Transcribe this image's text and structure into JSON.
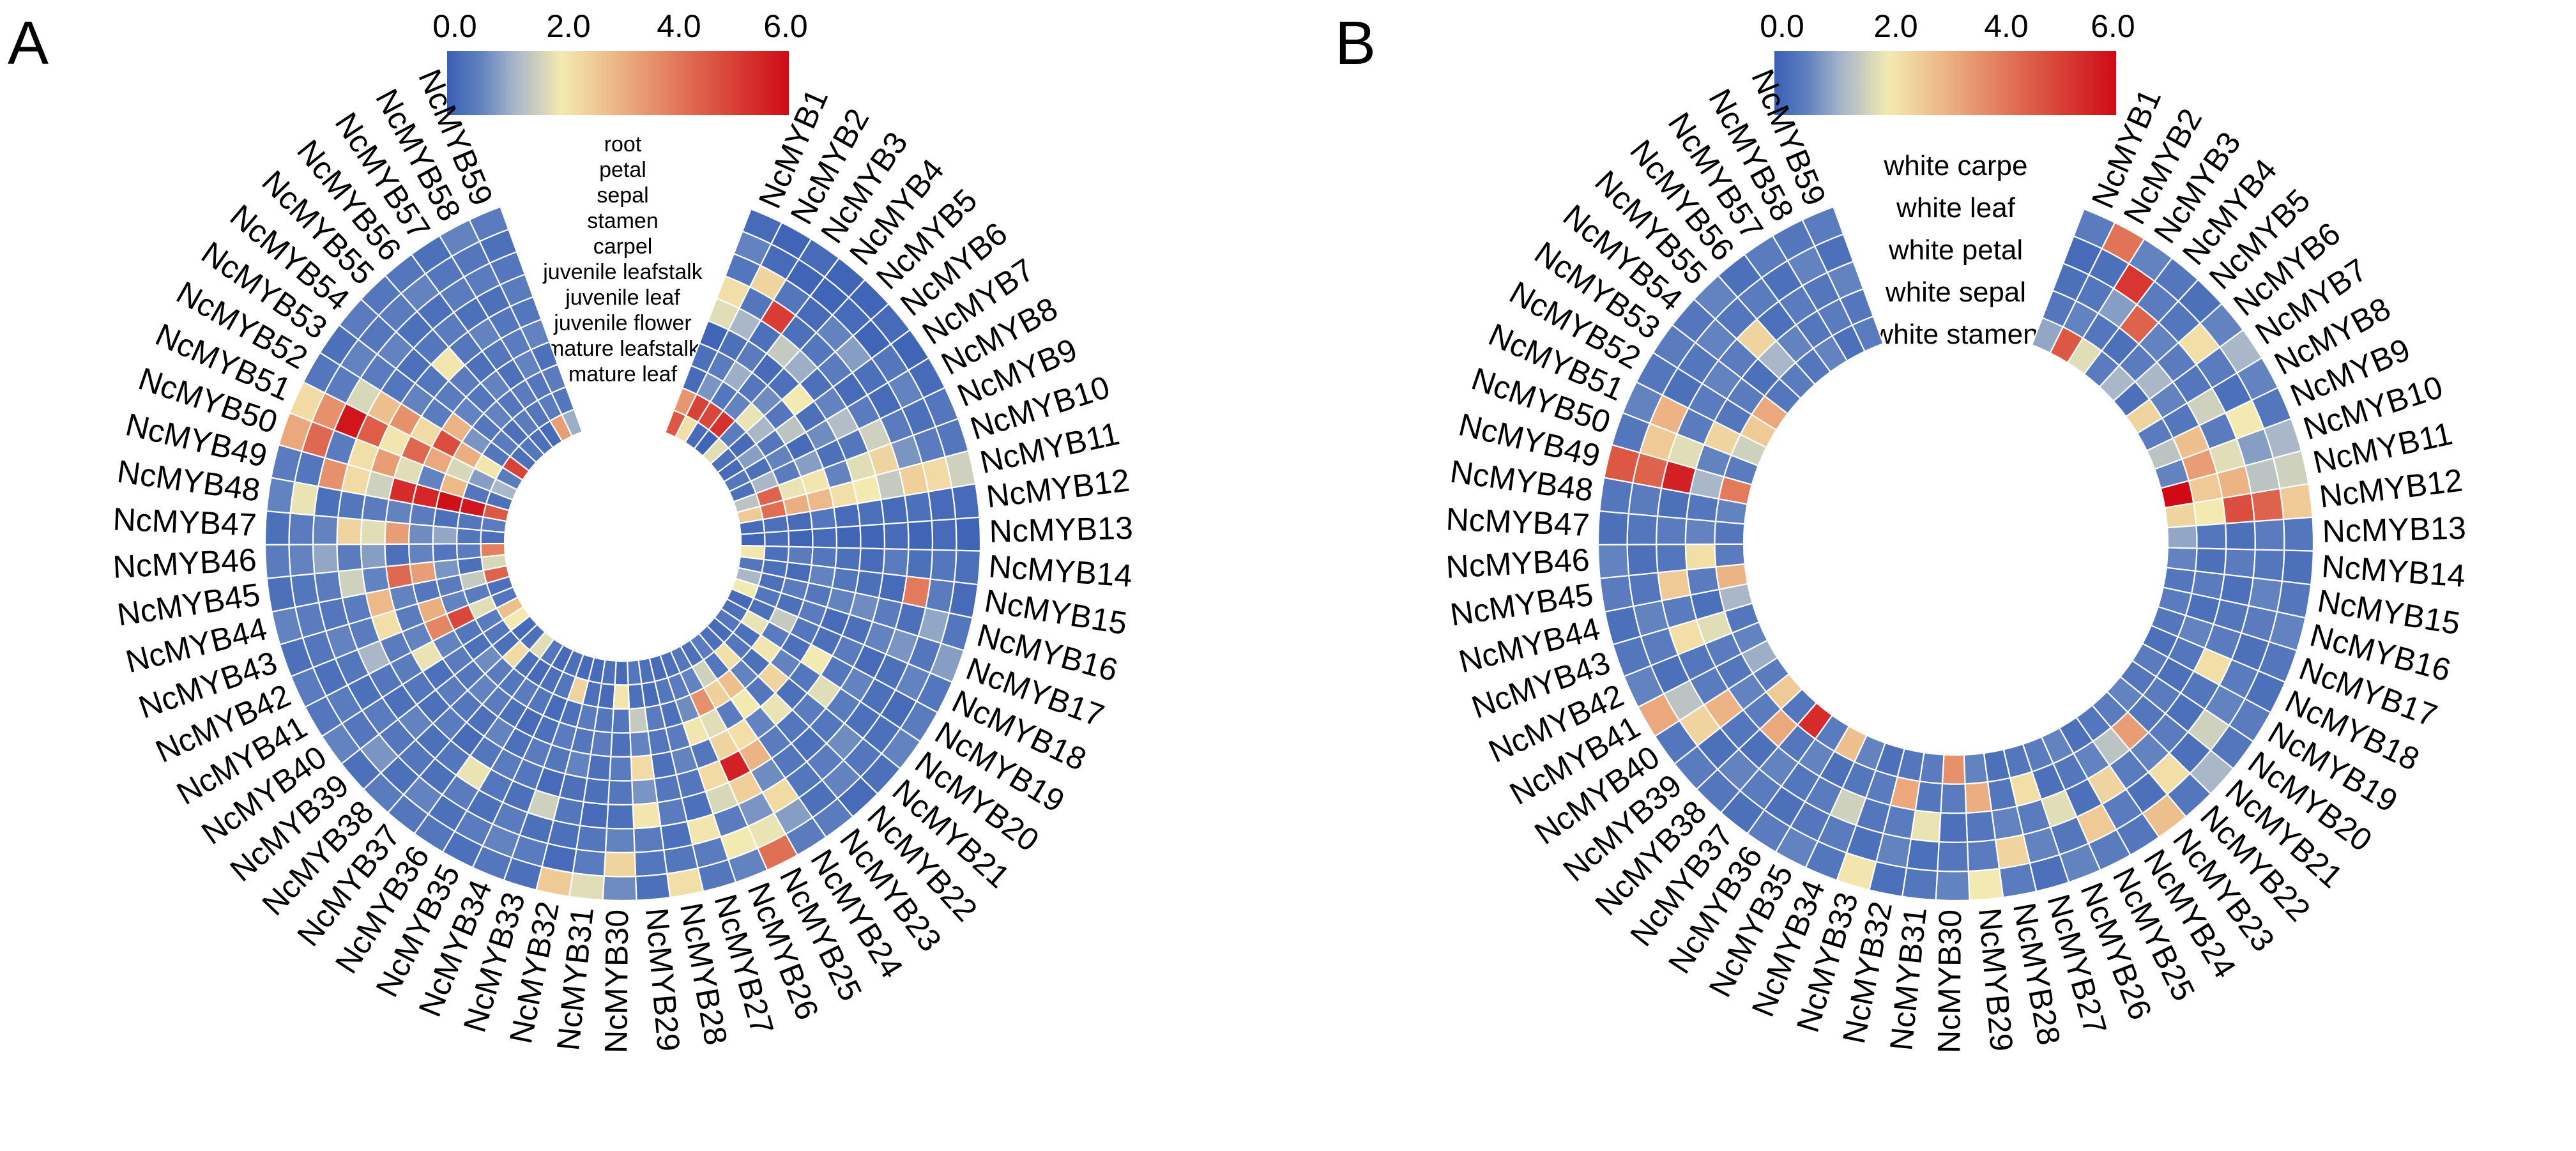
{
  "colorscale": {
    "min": 0,
    "max": 6,
    "stops": [
      {
        "v": 0.0,
        "c": "#3a5fb4"
      },
      {
        "v": 0.55,
        "c": "#5d7fbf"
      },
      {
        "v": 1.2,
        "c": "#a9b7c9"
      },
      {
        "v": 2.0,
        "c": "#f3eab1"
      },
      {
        "v": 3.0,
        "c": "#ecb484"
      },
      {
        "v": 4.2,
        "c": "#e06e53"
      },
      {
        "v": 6.0,
        "c": "#cf0a16"
      }
    ]
  },
  "chart_data": [
    {
      "type": "heatmap",
      "panel": "A",
      "tick_labels": [
        "0.0",
        "2.0",
        "4.0",
        "6.0"
      ],
      "ticks": [
        0,
        2,
        4,
        6
      ],
      "tissues": [
        "root",
        "petal",
        "sepal",
        "stamen",
        "carpel",
        "juvenile leafstalk",
        "juvenile leaf",
        "juvenile flower",
        "mature leafstalk",
        "mature leaf"
      ],
      "genes": [
        "NcMYB1",
        "NcMYB2",
        "NcMYB3",
        "NcMYB4",
        "NcMYB5",
        "NcMYB6",
        "NcMYB7",
        "NcMYB8",
        "NcMYB9",
        "NcMYB10",
        "NcMYB11",
        "NcMYB12",
        "NcMYB13",
        "NcMYB14",
        "NcMYB15",
        "NcMYB16",
        "NcMYB17",
        "NcMYB18",
        "NcMYB19",
        "NcMYB20",
        "NcMYB21",
        "NcMYB22",
        "NcMYB23",
        "NcMYB24",
        "NcMYB25",
        "NcMYB26",
        "NcMYB27",
        "NcMYB28",
        "NcMYB29",
        "NcMYB30",
        "NcMYB31",
        "NcMYB32",
        "NcMYB33",
        "NcMYB34",
        "NcMYB35",
        "NcMYB36",
        "NcMYB37",
        "NcMYB38",
        "NcMYB39",
        "NcMYB40",
        "NcMYB41",
        "NcMYB42",
        "NcMYB43",
        "NcMYB44",
        "NcMYB45",
        "NcMYB46",
        "NcMYB47",
        "NcMYB48",
        "NcMYB49",
        "NcMYB50",
        "NcMYB51",
        "NcMYB52",
        "NcMYB53",
        "NcMYB54",
        "NcMYB55",
        "NcMYB56",
        "NcMYB57",
        "NcMYB58",
        "NcMYB59"
      ],
      "values": [
        [
          4.6,
          3.5,
          0.2,
          0.3,
          0.1,
          1.8,
          2.2,
          0.4,
          0.6,
          0.2
        ],
        [
          2.2,
          5.0,
          0.8,
          0.5,
          0.3,
          1.2,
          0.4,
          2.4,
          0.2,
          0.1
        ],
        [
          0.2,
          4.9,
          0.4,
          1.1,
          0.5,
          0.3,
          5.1,
          0.4,
          0.1,
          0.2
        ],
        [
          0.1,
          5.3,
          0.6,
          0.4,
          0.2,
          1.5,
          0.3,
          0.2,
          0.1,
          0.1
        ],
        [
          1.8,
          0.5,
          1.9,
          0.7,
          0.3,
          1.1,
          0.4,
          0.6,
          0.2,
          0.1
        ],
        [
          0.3,
          0.2,
          1.2,
          0.4,
          2.0,
          0.3,
          0.5,
          0.9,
          0.1,
          0.2
        ],
        [
          0.2,
          0.9,
          0.4,
          1.4,
          0.3,
          0.6,
          0.2,
          0.3,
          0.4,
          0.1
        ],
        [
          0.4,
          0.3,
          0.6,
          0.2,
          0.7,
          1.3,
          0.5,
          0.2,
          0.6,
          0.2
        ],
        [
          0.3,
          1.2,
          0.5,
          0.9,
          0.3,
          0.4,
          1.6,
          0.5,
          0.3,
          0.4
        ],
        [
          1.4,
          4.4,
          1.9,
          2.1,
          0.6,
          1.8,
          2.4,
          0.8,
          0.5,
          0.4
        ],
        [
          2.6,
          4.2,
          3.1,
          2.9,
          2.2,
          2.0,
          1.5,
          2.5,
          2.3,
          1.6
        ],
        [
          0.2,
          0.3,
          0.2,
          0.4,
          0.2,
          0.3,
          0.2,
          0.3,
          0.2,
          0.2
        ],
        [
          0.1,
          0.2,
          0.1,
          0.2,
          0.1,
          0.1,
          0.2,
          0.1,
          0.2,
          0.1
        ],
        [
          2.1,
          0.3,
          0.5,
          0.4,
          0.3,
          0.2,
          0.5,
          0.3,
          0.4,
          0.3
        ],
        [
          0.4,
          0.3,
          0.2,
          0.6,
          0.4,
          0.3,
          0.2,
          4.0,
          0.5,
          0.2
        ],
        [
          1.2,
          0.3,
          0.5,
          0.4,
          0.6,
          0.7,
          0.5,
          0.3,
          1.0,
          0.4
        ],
        [
          2.0,
          0.4,
          0.3,
          0.5,
          0.2,
          0.3,
          0.6,
          0.8,
          0.4,
          0.9
        ],
        [
          0.2,
          0.3,
          1.5,
          0.4,
          0.3,
          0.5,
          0.2,
          0.3,
          0.6,
          0.4
        ],
        [
          0.3,
          1.9,
          0.5,
          0.3,
          2.0,
          0.4,
          0.6,
          0.3,
          0.2,
          0.5
        ],
        [
          0.4,
          0.3,
          2.1,
          0.6,
          0.4,
          1.8,
          0.5,
          0.3,
          0.3,
          0.6
        ],
        [
          0.2,
          0.4,
          0.3,
          2.4,
          0.3,
          0.5,
          0.4,
          0.7,
          0.4,
          0.3
        ],
        [
          0.3,
          2.2,
          0.6,
          0.4,
          1.9,
          0.4,
          0.3,
          0.5,
          0.6,
          0.2
        ],
        [
          0.5,
          0.4,
          2.8,
          2.0,
          0.6,
          0.5,
          0.4,
          0.4,
          0.3,
          0.5
        ],
        [
          0.3,
          1.6,
          2.5,
          0.5,
          2.2,
          3.0,
          0.7,
          2.3,
          0.9,
          0.5
        ],
        [
          0.4,
          0.6,
          3.6,
          1.8,
          2.4,
          5.6,
          2.5,
          0.8,
          1.9,
          4.2
        ],
        [
          0.3,
          0.5,
          0.7,
          2.1,
          0.4,
          2.3,
          1.7,
          0.5,
          2.0,
          0.6
        ],
        [
          0.2,
          0.4,
          0.3,
          0.5,
          0.6,
          0.4,
          0.3,
          2.1,
          0.5,
          0.4
        ],
        [
          0.3,
          0.2,
          0.5,
          0.4,
          0.3,
          0.4,
          0.5,
          0.3,
          0.4,
          2.2
        ],
        [
          0.4,
          0.3,
          1.5,
          0.6,
          2.3,
          0.8,
          2.1,
          0.5,
          0.4,
          0.3
        ],
        [
          0.2,
          2.1,
          0.4,
          0.3,
          0.5,
          0.4,
          0.3,
          0.6,
          2.4,
          0.7
        ],
        [
          0.3,
          0.2,
          0.4,
          0.5,
          0.3,
          0.3,
          0.2,
          0.4,
          0.5,
          1.8
        ],
        [
          0.2,
          0.3,
          0.5,
          0.4,
          0.6,
          0.3,
          0.4,
          0.3,
          0.2,
          2.6
        ],
        [
          0.2,
          2.4,
          0.3,
          0.5,
          0.4,
          0.2,
          1.6,
          0.3,
          0.5,
          0.3
        ],
        [
          0.3,
          0.4,
          0.2,
          0.3,
          0.5,
          0.4,
          0.3,
          0.5,
          0.6,
          0.4
        ],
        [
          0.2,
          0.3,
          0.4,
          0.2,
          0.3,
          0.5,
          0.4,
          0.3,
          0.5,
          0.3
        ],
        [
          0.4,
          0.2,
          0.5,
          0.3,
          0.6,
          0.4,
          1.9,
          0.5,
          0.3,
          0.4
        ],
        [
          1.8,
          0.3,
          0.4,
          0.5,
          0.3,
          0.2,
          0.4,
          0.3,
          0.6,
          0.4
        ],
        [
          0.3,
          2.3,
          0.5,
          0.6,
          0.4,
          0.5,
          0.3,
          0.4,
          0.3,
          0.5
        ],
        [
          0.2,
          0.3,
          0.7,
          0.4,
          0.5,
          0.3,
          0.6,
          0.4,
          0.8,
          0.3
        ],
        [
          2.0,
          0.4,
          0.3,
          0.5,
          0.3,
          0.4,
          0.3,
          0.5,
          0.4,
          0.6
        ],
        [
          2.8,
          0.5,
          0.4,
          0.6,
          1.9,
          0.5,
          0.4,
          0.3,
          0.5,
          0.4
        ],
        [
          0.4,
          1.8,
          4.9,
          3.8,
          0.6,
          0.5,
          1.2,
          0.4,
          0.3,
          0.5
        ],
        [
          0.3,
          0.5,
          0.6,
          3.1,
          0.5,
          2.2,
          0.5,
          0.6,
          0.4,
          0.3
        ],
        [
          4.4,
          1.5,
          0.5,
          0.4,
          0.6,
          2.9,
          0.5,
          0.4,
          0.5,
          0.6
        ],
        [
          1.7,
          0.3,
          0.8,
          3.4,
          4.3,
          0.6,
          1.6,
          0.5,
          0.4,
          0.3
        ],
        [
          3.9,
          0.5,
          0.4,
          0.6,
          0.3,
          0.9,
          0.5,
          1.0,
          0.6,
          0.5
        ],
        [
          0.3,
          0.4,
          1.0,
          0.7,
          3.4,
          1.8,
          2.4,
          0.6,
          0.5,
          0.3
        ],
        [
          0.5,
          0.4,
          0.3,
          0.5,
          0.6,
          0.5,
          0.4,
          0.3,
          1.9,
          0.6
        ],
        [
          4.6,
          5.8,
          5.9,
          5.5,
          5.4,
          1.6,
          2.3,
          3.6,
          0.4,
          0.5
        ],
        [
          0.3,
          0.4,
          2.9,
          0.6,
          1.8,
          3.4,
          2.2,
          0.5,
          4.3,
          3.2
        ],
        [
          1.2,
          0.9,
          1.7,
          3.2,
          4.3,
          2.1,
          4.5,
          5.8,
          3.6,
          2.3
        ],
        [
          0.5,
          2.1,
          3.1,
          4.8,
          2.3,
          3.6,
          2.8,
          1.7,
          0.5,
          0.4
        ],
        [
          5.0,
          0.4,
          0.8,
          3.0,
          0.5,
          0.6,
          0.4,
          0.5,
          0.6,
          0.3
        ],
        [
          0.3,
          0.5,
          0.4,
          0.6,
          0.5,
          0.4,
          0.3,
          0.6,
          0.4,
          0.5
        ],
        [
          0.4,
          0.3,
          0.6,
          0.4,
          0.5,
          2.1,
          0.4,
          0.3,
          0.5,
          0.4
        ],
        [
          0.3,
          0.5,
          0.4,
          0.6,
          0.3,
          0.4,
          0.5,
          0.3,
          0.6,
          0.4
        ],
        [
          0.2,
          0.4,
          0.5,
          0.3,
          0.4,
          0.6,
          0.3,
          0.5,
          0.4,
          0.3
        ],
        [
          3.4,
          0.5,
          0.4,
          0.6,
          0.5,
          0.4,
          0.3,
          0.5,
          0.4,
          0.6
        ],
        [
          1.1,
          0.4,
          0.5,
          0.3,
          0.6,
          0.4,
          0.5,
          0.4,
          0.3,
          0.5
        ]
      ]
    },
    {
      "type": "heatmap",
      "panel": "B",
      "tick_labels": [
        "0.0",
        "2.0",
        "4.0",
        "6.0"
      ],
      "ticks": [
        0,
        2,
        4,
        6
      ],
      "tissues": [
        "white carpe",
        "white leaf",
        "white petal",
        "white sepal",
        "white stamen"
      ],
      "genes": [
        "NcMYB1",
        "NcMYB2",
        "NcMYB3",
        "NcMYB4",
        "NcMYB5",
        "NcMYB6",
        "NcMYB7",
        "NcMYB8",
        "NcMYB9",
        "NcMYB10",
        "NcMYB11",
        "NcMYB12",
        "NcMYB13",
        "NcMYB14",
        "NcMYB15",
        "NcMYB16",
        "NcMYB17",
        "NcMYB18",
        "NcMYB19",
        "NcMYB20",
        "NcMYB21",
        "NcMYB22",
        "NcMYB23",
        "NcMYB24",
        "NcMYB25",
        "NcMYB26",
        "NcMYB27",
        "NcMYB28",
        "NcMYB29",
        "NcMYB30",
        "NcMYB31",
        "NcMYB32",
        "NcMYB33",
        "NcMYB34",
        "NcMYB35",
        "NcMYB36",
        "NcMYB37",
        "NcMYB38",
        "NcMYB39",
        "NcMYB40",
        "NcMYB41",
        "NcMYB42",
        "NcMYB43",
        "NcMYB44",
        "NcMYB45",
        "NcMYB46",
        "NcMYB47",
        "NcMYB48",
        "NcMYB49",
        "NcMYB50",
        "NcMYB51",
        "NcMYB52",
        "NcMYB53",
        "NcMYB54",
        "NcMYB55",
        "NcMYB56",
        "NcMYB57",
        "NcMYB58",
        "NcMYB59"
      ],
      "values": [
        [
          1.0,
          0.4,
          0.3,
          0.2,
          0.5
        ],
        [
          4.6,
          0.6,
          0.4,
          0.3,
          4.1
        ],
        [
          1.8,
          0.4,
          0.9,
          5.2,
          0.6
        ],
        [
          0.5,
          0.3,
          4.4,
          0.5,
          0.4
        ],
        [
          1.2,
          0.5,
          0.6,
          0.4,
          0.3
        ],
        [
          0.3,
          1.2,
          0.5,
          2.2,
          0.6
        ],
        [
          2.4,
          0.6,
          0.4,
          0.5,
          1.2
        ],
        [
          0.5,
          0.4,
          1.6,
          0.3,
          0.6
        ],
        [
          1.4,
          2.8,
          0.5,
          2.0,
          0.4
        ],
        [
          0.6,
          3.4,
          1.8,
          0.9,
          1.2
        ],
        [
          6.0,
          2.6,
          3.0,
          1.4,
          1.6
        ],
        [
          2.4,
          2.0,
          4.8,
          4.4,
          2.6
        ],
        [
          1.0,
          0.4,
          0.3,
          0.5,
          0.4
        ],
        [
          0.6,
          0.3,
          0.5,
          0.4,
          0.3
        ],
        [
          0.4,
          0.5,
          0.3,
          0.6,
          0.4
        ],
        [
          0.5,
          0.3,
          0.4,
          0.5,
          0.6
        ],
        [
          0.4,
          0.6,
          0.5,
          0.3,
          0.4
        ],
        [
          0.3,
          0.4,
          2.2,
          0.5,
          0.3
        ],
        [
          0.5,
          0.3,
          0.4,
          0.6,
          0.5
        ],
        [
          0.4,
          0.5,
          0.3,
          1.6,
          0.4
        ],
        [
          0.6,
          0.4,
          0.5,
          0.3,
          1.2
        ],
        [
          0.5,
          3.4,
          0.6,
          2.2,
          0.4
        ],
        [
          0.4,
          1.4,
          0.5,
          0.3,
          2.8
        ],
        [
          0.3,
          0.6,
          2.4,
          0.5,
          0.4
        ],
        [
          0.6,
          0.4,
          0.3,
          2.6,
          0.5
        ],
        [
          0.5,
          0.3,
          1.8,
          0.4,
          0.6
        ],
        [
          0.4,
          2.2,
          0.5,
          0.6,
          0.3
        ],
        [
          0.3,
          0.4,
          0.6,
          2.4,
          0.5
        ],
        [
          0.6,
          3.1,
          0.4,
          0.5,
          2.0
        ],
        [
          3.6,
          0.5,
          0.3,
          0.4,
          0.6
        ],
        [
          0.5,
          0.4,
          1.9,
          0.3,
          0.4
        ],
        [
          0.4,
          3.2,
          0.5,
          0.6,
          0.3
        ],
        [
          0.3,
          0.5,
          0.4,
          0.3,
          2.1
        ],
        [
          0.6,
          0.4,
          1.6,
          0.5,
          0.4
        ],
        [
          2.8,
          0.3,
          0.5,
          0.4,
          0.6
        ],
        [
          0.5,
          0.6,
          0.4,
          0.3,
          0.5
        ],
        [
          5.4,
          0.4,
          0.6,
          0.5,
          0.3
        ],
        [
          0.4,
          3.2,
          0.3,
          0.6,
          0.4
        ],
        [
          2.6,
          0.5,
          0.4,
          0.3,
          0.5
        ],
        [
          0.5,
          0.6,
          3.0,
          2.4,
          0.4
        ],
        [
          1.1,
          0.4,
          0.5,
          1.4,
          3.2
        ],
        [
          0.6,
          0.5,
          0.4,
          0.3,
          0.6
        ],
        [
          0.4,
          1.8,
          2.2,
          0.5,
          0.4
        ],
        [
          1.2,
          0.3,
          0.5,
          0.6,
          0.3
        ],
        [
          3.0,
          0.5,
          2.6,
          0.4,
          0.5
        ],
        [
          0.5,
          2.2,
          0.4,
          0.3,
          0.6
        ],
        [
          0.4,
          0.6,
          0.5,
          0.4,
          0.3
        ],
        [
          0.6,
          0.4,
          0.3,
          0.5,
          0.4
        ],
        [
          4.0,
          1.2,
          5.6,
          4.4,
          4.6
        ],
        [
          0.5,
          0.6,
          1.8,
          2.6,
          0.4
        ],
        [
          1.6,
          2.4,
          0.5,
          3.0,
          0.6
        ],
        [
          2.6,
          0.4,
          0.5,
          0.3,
          0.4
        ],
        [
          3.2,
          0.5,
          0.6,
          0.4,
          0.5
        ],
        [
          0.4,
          0.3,
          0.5,
          0.6,
          0.4
        ],
        [
          0.5,
          1.2,
          2.4,
          0.4,
          0.6
        ],
        [
          0.4,
          0.6,
          0.3,
          0.5,
          0.3
        ],
        [
          0.6,
          0.4,
          0.5,
          0.3,
          0.5
        ],
        [
          0.3,
          0.5,
          0.4,
          0.6,
          0.4
        ],
        [
          0.5,
          0.4,
          0.6,
          0.3,
          0.5
        ]
      ]
    }
  ]
}
